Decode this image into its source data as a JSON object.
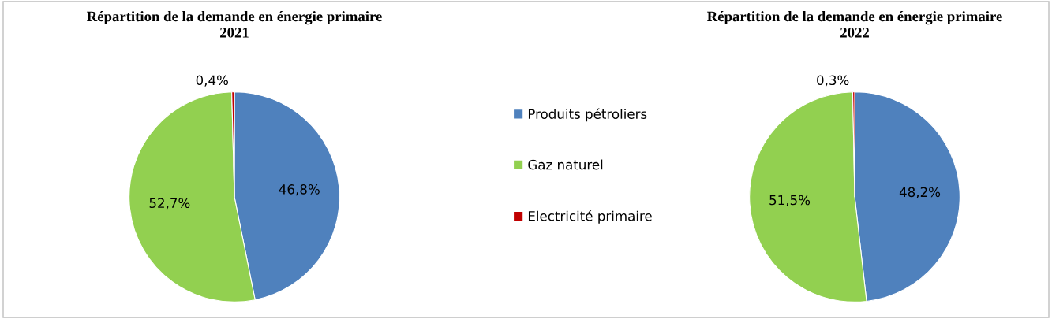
{
  "chart_data": [
    {
      "type": "pie",
      "title": "Répartition de la demande en énergie primaire\n2021",
      "categories": [
        "Produits pétroliers",
        "Gaz naturel",
        "Electricité primaire"
      ],
      "values": [
        46.8,
        52.7,
        0.4
      ],
      "value_labels": [
        "46,8%",
        "52,7%",
        "0,4%"
      ],
      "colors": [
        "#4f81bd",
        "#92d050",
        "#c00000"
      ],
      "legend": "right"
    },
    {
      "type": "pie",
      "title": "Répartition de la demande en énergie primaire\n2022",
      "categories": [
        null,
        null,
        null
      ],
      "values": [
        48.2,
        51.5,
        0.3
      ],
      "value_labels": [
        "48,2%",
        "51,5%",
        "0,3%"
      ],
      "colors": [
        "#4f81bd",
        "#92d050",
        "#c00000"
      ]
    }
  ]
}
